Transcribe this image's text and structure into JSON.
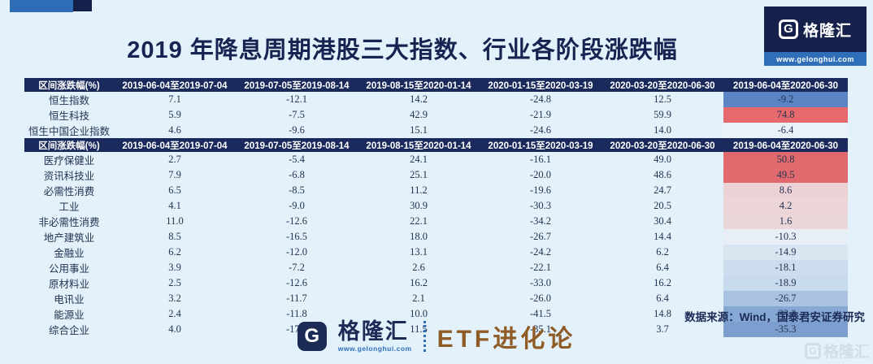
{
  "page": {
    "title": "2019 年降息周期港股三大指数、行业各阶段涨跌幅",
    "background": "#e3f1fa",
    "accent_blue": "#2e6cb5",
    "accent_navy": "#14204a"
  },
  "header_badge": {
    "g_letter": "G",
    "brand": "格隆汇",
    "url": "www.gelonghui.com"
  },
  "chart_data": [
    {
      "type": "table",
      "name": "hk-indices",
      "header_label": "区间涨跌幅(%)",
      "columns": [
        "区间涨跌幅(%)",
        "2019-06-04至2019-07-04",
        "2019-07-05至2019-08-14",
        "2019-08-15至2020-01-14",
        "2020-01-15至2020-03-19",
        "2020-03-20至2020-06-30",
        "2019-06-04至2020-06-30"
      ],
      "rows": [
        {
          "label": "恒生指数",
          "values": [
            "7.1",
            "-12.1",
            "14.2",
            "-24.8",
            "12.5",
            "-9.2"
          ],
          "last_bg": "#5b84c4"
        },
        {
          "label": "恒生科技",
          "values": [
            "5.9",
            "-7.5",
            "42.9",
            "-21.9",
            "59.9",
            "74.8"
          ],
          "last_bg": "#e5696d"
        },
        {
          "label": "恒生中国企业指数",
          "values": [
            "4.6",
            "-9.6",
            "15.1",
            "-24.6",
            "14.0",
            "-6.4"
          ],
          "last_bg": "#e9f1f9"
        }
      ]
    },
    {
      "type": "table",
      "name": "hk-industries",
      "header_label": "区间涨跌幅(%)",
      "columns": [
        "区间涨跌幅(%)",
        "2019-06-04至2019-07-04",
        "2019-07-05至2019-08-14",
        "2019-08-15至2020-01-14",
        "2020-01-15至2020-03-19",
        "2020-03-20至2020-06-30",
        "2019-06-04至2020-06-30"
      ],
      "rows": [
        {
          "label": "医疗保健业",
          "values": [
            "2.7",
            "-5.4",
            "24.1",
            "-16.1",
            "49.0",
            "50.8"
          ],
          "last_bg": "#e0696d"
        },
        {
          "label": "资讯科技业",
          "values": [
            "7.9",
            "-6.8",
            "25.1",
            "-20.0",
            "48.6",
            "49.5"
          ],
          "last_bg": "#e06a6e"
        },
        {
          "label": "必需性消费",
          "values": [
            "6.5",
            "-8.5",
            "11.2",
            "-19.6",
            "24.7",
            "8.6"
          ],
          "last_bg": "#edd2d5"
        },
        {
          "label": "工业",
          "values": [
            "4.1",
            "-9.0",
            "30.9",
            "-30.3",
            "20.5",
            "4.2"
          ],
          "last_bg": "#ecd5d8"
        },
        {
          "label": "非必需性消费",
          "values": [
            "11.0",
            "-12.6",
            "22.1",
            "-34.2",
            "30.4",
            "1.6"
          ],
          "last_bg": "#ebd7da"
        },
        {
          "label": "地产建筑业",
          "values": [
            "8.5",
            "-16.5",
            "18.0",
            "-26.7",
            "14.4",
            "-10.3"
          ],
          "last_bg": "#e7eef6"
        },
        {
          "label": "金融业",
          "values": [
            "6.2",
            "-12.0",
            "13.1",
            "-24.2",
            "6.2",
            "-14.9"
          ],
          "last_bg": "#d9e6f2"
        },
        {
          "label": "公用事业",
          "values": [
            "3.9",
            "-7.2",
            "2.6",
            "-22.1",
            "6.4",
            "-18.1"
          ],
          "last_bg": "#cdddee"
        },
        {
          "label": "原材料业",
          "values": [
            "2.5",
            "-12.6",
            "16.2",
            "-33.0",
            "16.2",
            "-18.9"
          ],
          "last_bg": "#c8daed"
        },
        {
          "label": "电讯业",
          "values": [
            "3.2",
            "-11.7",
            "2.1",
            "-26.0",
            "6.4",
            "-26.7"
          ],
          "last_bg": "#a9c3e1"
        },
        {
          "label": "能源业",
          "values": [
            "2.4",
            "-11.8",
            "10.0",
            "-41.5",
            "14.8",
            "-33.3"
          ],
          "last_bg": "#85a8d4"
        },
        {
          "label": "综合企业",
          "values": [
            "4.0",
            "-17.1",
            "11.5",
            "-35.1",
            "3.7",
            "-35.3"
          ],
          "last_bg": "#7d9fd0"
        }
      ]
    }
  ],
  "footer": {
    "g_letter": "G",
    "brand": "格隆汇",
    "url": "www.gelonghui.com",
    "tagline": "ETF进化论",
    "tagline_color": "#8f5c26",
    "source": "数据来源：Wind，国泰君安证券研究",
    "watermark_g": "G",
    "watermark": "格隆汇"
  }
}
